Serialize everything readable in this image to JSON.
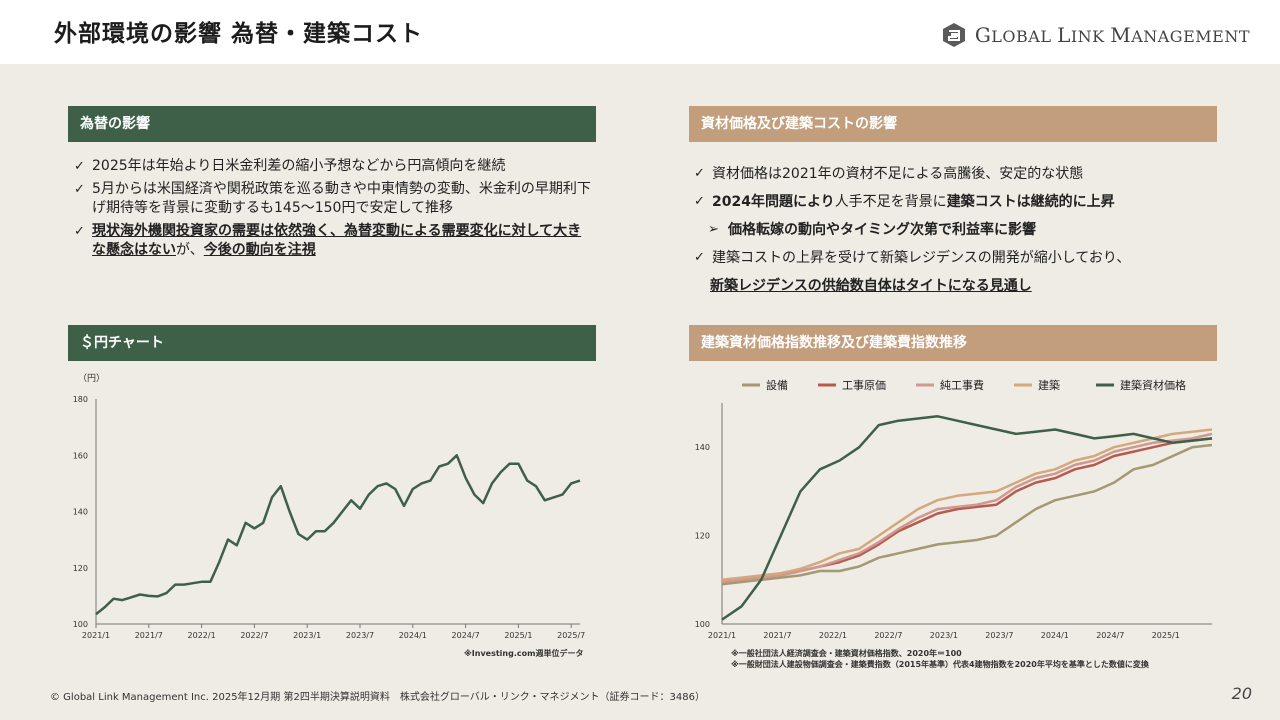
{
  "header": {
    "title": "外部環境の影響 為替・建築コスト",
    "logo_text_1": "G",
    "logo_text_2": "LOBAL ",
    "logo_text_3": "L",
    "logo_text_4": "INK ",
    "logo_text_5": "M",
    "logo_text_6": "ANAGEMENT"
  },
  "fx_section": {
    "heading": "為替の影響",
    "b1": "2025年は年始より日米金利差の縮小予想などから円高傾向を継続",
    "b2": "5月からは米国経済や関税政策を巡る動きや中東情勢の変動、米金利の早期利下げ期待等を背景に変動するも145～150円で安定して推移",
    "b3_u1": "現状海外機関投資家の需要は依然強く、為替変動による需要変化に対して大きな懸念はない",
    "b3_mid": "が、",
    "b3_u2": "今後の動向を注視"
  },
  "cost_section": {
    "heading": "資材価格及び建築コストの影響",
    "b1": "資材価格は2021年の資材不足による高騰後、安定的な状態",
    "b2_bold1": "2024年問題により",
    "b2_mid": "人手不足を背景に",
    "b2_bold2": "建築コストは継続的に上昇",
    "arrow": "価格転嫁の動向やタイミング次第で利益率に影響",
    "b3": "建築コストの上昇を受けて新築レジデンスの開発が縮小しており、",
    "b3_u": "新築レジデンスの供給数自体はタイトになる見通し"
  },
  "usd_chart_section": {
    "heading": "＄円チャート",
    "note": "※Investing.com週単位データ"
  },
  "index_chart_section": {
    "heading": "建築資材価格指数推移及び建築費指数推移",
    "note1": "※一般社団法人経済調査会・建築資材価格指数、2020年＝100",
    "note2": "※一般財団法人建設物価調査会・建築費指数（2015年基準）代表4建物指数を2020年平均を基準とした数値に変換"
  },
  "footer": {
    "text": "© Global Link Management Inc. 2025年12月期 第2四半期決算説明資料　株式会社グローバル・リンク・マネジメント（証券コード：3486）",
    "page": "20"
  },
  "chart_data": [
    {
      "type": "line",
      "ylabel": "（円）",
      "ylim": [
        100,
        180
      ],
      "yticks": [
        "100",
        "120",
        "140",
        "160",
        "180"
      ],
      "xticks": [
        "2021/1",
        "2021/7",
        "2022/1",
        "2022/7",
        "2023/1",
        "2023/7",
        "2024/1",
        "2024/7",
        "2025/1",
        "2025/7"
      ],
      "x": [
        "2021/1",
        "2021/2",
        "2021/3",
        "2021/4",
        "2021/5",
        "2021/6",
        "2021/7",
        "2021/8",
        "2021/9",
        "2021/10",
        "2021/11",
        "2021/12",
        "2022/1",
        "2022/2",
        "2022/3",
        "2022/4",
        "2022/5",
        "2022/6",
        "2022/7",
        "2022/8",
        "2022/9",
        "2022/10",
        "2022/11",
        "2022/12",
        "2023/1",
        "2023/2",
        "2023/3",
        "2023/4",
        "2023/5",
        "2023/6",
        "2023/7",
        "2023/8",
        "2023/9",
        "2023/10",
        "2023/11",
        "2023/12",
        "2024/1",
        "2024/2",
        "2024/3",
        "2024/4",
        "2024/5",
        "2024/6",
        "2024/7",
        "2024/8",
        "2024/9",
        "2024/10",
        "2024/11",
        "2024/12",
        "2025/1",
        "2025/2",
        "2025/3",
        "2025/4",
        "2025/5",
        "2025/6",
        "2025/7",
        "2025/8"
      ],
      "series": [
        {
          "color": "#3e6049",
          "values": [
            103.5,
            106,
            109,
            108.5,
            109.5,
            110.5,
            110,
            109.8,
            111,
            114,
            114,
            114.5,
            115,
            115,
            122,
            130,
            128,
            136,
            134,
            136,
            145,
            149,
            140,
            132,
            130,
            133,
            133,
            136,
            140,
            144,
            141,
            146,
            149,
            150,
            148,
            142,
            148,
            150,
            151,
            156,
            157,
            160,
            152,
            146,
            143,
            150,
            154,
            157,
            157,
            151,
            149,
            144,
            145,
            146,
            150,
            151
          ]
        }
      ]
    },
    {
      "type": "line",
      "ylim": [
        100,
        150
      ],
      "yticks": [
        "100",
        "120",
        "140"
      ],
      "xticks": [
        "2021/1",
        "2021/7",
        "2022/1",
        "2022/7",
        "2023/1",
        "2023/7",
        "2024/1",
        "2024/7",
        "2025/1"
      ],
      "x_range": [
        "2021/1",
        "2025/6"
      ],
      "series": [
        {
          "name": "設備",
          "color": "#a39a72",
          "values": [
            109,
            109.5,
            110,
            110.5,
            111,
            112,
            112,
            113,
            115,
            116,
            117,
            118,
            118.5,
            119,
            120,
            123,
            126,
            128,
            129,
            130,
            132,
            135,
            136,
            138,
            140,
            140.5
          ]
        },
        {
          "name": "工事原価",
          "color": "#b55c4e",
          "values": [
            109.5,
            110,
            110.5,
            111,
            112,
            113,
            114,
            115.5,
            118,
            121,
            123,
            125,
            126,
            126.5,
            127,
            130,
            132,
            133,
            135,
            136,
            138,
            139,
            140,
            141,
            141.5,
            142
          ]
        },
        {
          "name": "純工事費",
          "color": "#cf9890",
          "values": [
            109.5,
            110,
            110.5,
            111,
            112,
            113,
            114.5,
            116,
            118.5,
            121.5,
            124,
            126,
            126.5,
            127,
            128,
            131,
            133,
            134,
            136,
            137,
            139,
            140,
            141,
            141.5,
            142,
            143
          ]
        },
        {
          "name": "建築",
          "color": "#d3a97c",
          "values": [
            110,
            110.5,
            111,
            111.5,
            112.5,
            114,
            116,
            117,
            120,
            123,
            126,
            128,
            129,
            129.5,
            130,
            132,
            134,
            135,
            137,
            138,
            140,
            141,
            142,
            143,
            143.5,
            144
          ]
        },
        {
          "name": "建築資材価格",
          "color": "#3e6049",
          "values": [
            101,
            104,
            110,
            120,
            130,
            135,
            137,
            140,
            145,
            146,
            146.5,
            147,
            146,
            145,
            144,
            143,
            143.5,
            144,
            143,
            142,
            142.5,
            143,
            142,
            141,
            141.5,
            142
          ]
        }
      ]
    }
  ]
}
